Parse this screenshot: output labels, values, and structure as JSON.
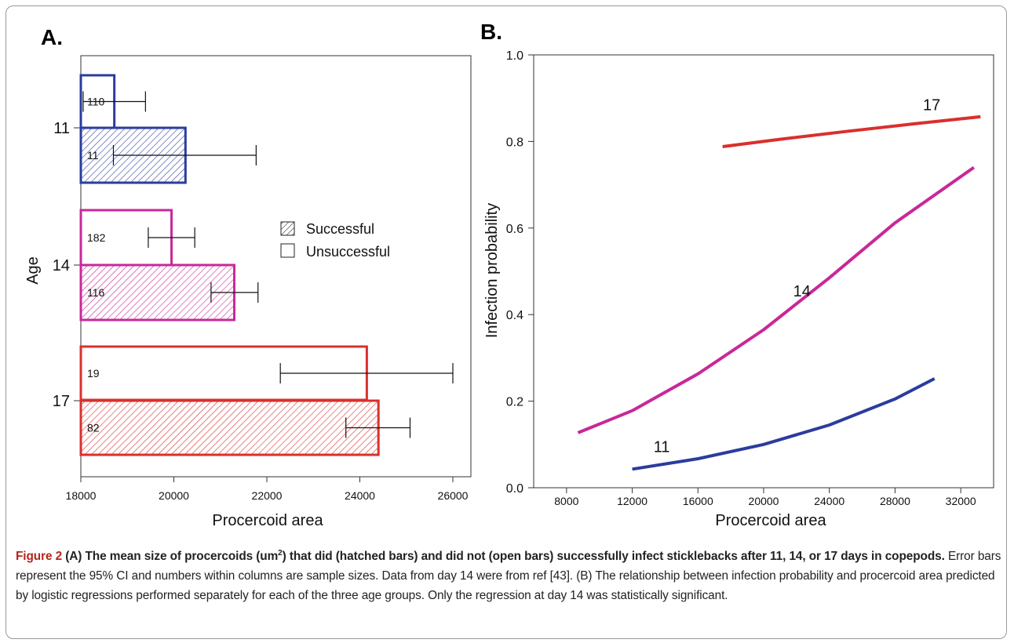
{
  "chart_data": [
    {
      "panel": "A.",
      "type": "bar",
      "orientation": "horizontal",
      "xlabel": "Procercoid area",
      "ylabel": "Age",
      "xlim": [
        18000,
        26000
      ],
      "xticks": [
        "18000",
        "20000",
        "22000",
        "24000",
        "26000"
      ],
      "yticks": [
        "11",
        "14",
        "17"
      ],
      "legend": {
        "position": "right",
        "entries": [
          "Successful",
          "Unsuccessful"
        ]
      },
      "colors": {
        "11": "#2b3c9e",
        "14": "#c8289a",
        "17": "#d9302c"
      },
      "bars": [
        {
          "age": "11",
          "status": "Unsuccessful",
          "value": 18720,
          "ci": [
            18050,
            19390
          ],
          "n": "110"
        },
        {
          "age": "11",
          "status": "Successful",
          "value": 20250,
          "ci": [
            18700,
            21770
          ],
          "n": "11"
        },
        {
          "age": "14",
          "status": "Unsuccessful",
          "value": 19950,
          "ci": [
            19450,
            20450
          ],
          "n": "182"
        },
        {
          "age": "14",
          "status": "Successful",
          "value": 21300,
          "ci": [
            20800,
            21810
          ],
          "n": "116"
        },
        {
          "age": "17",
          "status": "Unsuccessful",
          "value": 24150,
          "ci": [
            22290,
            26000
          ],
          "n": "19"
        },
        {
          "age": "17",
          "status": "Successful",
          "value": 24400,
          "ci": [
            23700,
            25080
          ],
          "n": "82"
        }
      ]
    },
    {
      "panel": "B.",
      "type": "line",
      "xlabel": "Procercoid area",
      "ylabel": "Infection probability",
      "xlim": [
        6000,
        34000
      ],
      "ylim": [
        0.0,
        1.0
      ],
      "xticks": [
        "8000",
        "12000",
        "16000",
        "20000",
        "24000",
        "28000",
        "32000"
      ],
      "yticks": [
        "0.0",
        "0.2",
        "0.4",
        "0.6",
        "0.8",
        "1.0"
      ],
      "series": [
        {
          "name": "17",
          "color": "#d9302c",
          "x": [
            17500,
            21000,
            25000,
            29000,
            33200
          ],
          "y": [
            0.788,
            0.805,
            0.823,
            0.84,
            0.857
          ]
        },
        {
          "name": "14",
          "color": "#c8289a",
          "x": [
            8700,
            12000,
            16000,
            20000,
            24000,
            28000,
            32800
          ],
          "y": [
            0.127,
            0.178,
            0.263,
            0.365,
            0.485,
            0.612,
            0.74
          ]
        },
        {
          "name": "11",
          "color": "#2b3c9e",
          "x": [
            12000,
            16000,
            20000,
            24000,
            28000,
            30400
          ],
          "y": [
            0.043,
            0.067,
            0.1,
            0.145,
            0.205,
            0.252
          ]
        }
      ]
    }
  ],
  "caption": {
    "figure_label": "Figure 2",
    "bold_text": " (A) The mean size of procercoids (um",
    "bold_sup": "2",
    "bold_text2": ") that did (hatched bars) and did not (open bars) successfully infect sticklebacks after 11, 14, or 17 days in copepods.",
    "body": " Error bars represent the 95% CI and numbers within columns are sample sizes. Data from day 14 were from ref [43]. (B) The relationship between infection probability and procercoid area predicted by logistic regressions performed separately for each of the three age groups. Only the regression at day 14 was statistically significant."
  }
}
